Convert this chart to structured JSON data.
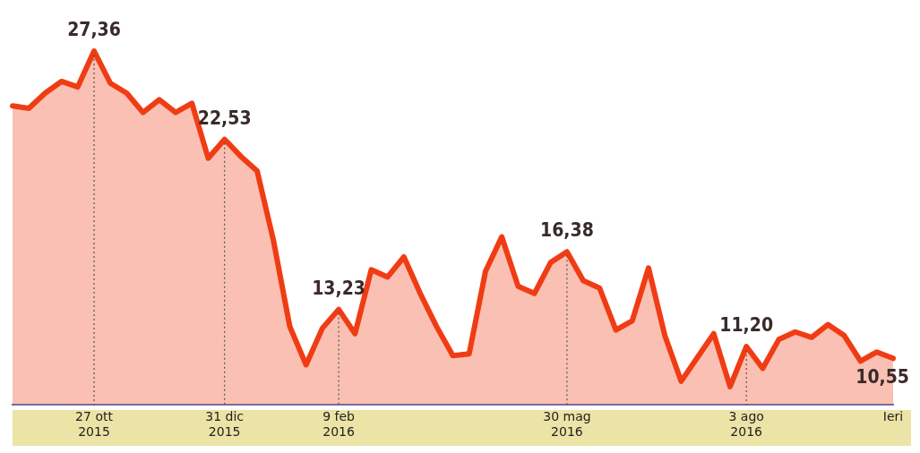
{
  "chart_data": {
    "type": "area",
    "categories": [
      null,
      null,
      null,
      null,
      null,
      "27 ott\n2015",
      null,
      null,
      null,
      null,
      null,
      null,
      null,
      "31 dic\n2015",
      null,
      null,
      null,
      null,
      null,
      null,
      "9 feb\n2016",
      null,
      null,
      null,
      null,
      null,
      null,
      null,
      null,
      null,
      null,
      null,
      null,
      null,
      "30 mag\n2016",
      null,
      null,
      null,
      null,
      null,
      null,
      null,
      null,
      null,
      null,
      "3 ago\n2016",
      null,
      null,
      null,
      null,
      null,
      null,
      null,
      null,
      "Ieri"
    ],
    "series": [
      {
        "color": "#f03c14",
        "values": [
          24.36,
          24.23,
          25.06,
          25.7,
          25.4,
          27.36,
          25.6,
          25.06,
          24.0,
          24.7,
          24.0,
          24.5,
          21.5,
          22.53,
          21.6,
          20.8,
          17.0,
          12.3,
          10.2,
          12.2,
          13.23,
          11.9,
          15.4,
          15.0,
          16.1,
          14.1,
          12.3,
          10.7,
          10.8,
          15.3,
          17.2,
          14.5,
          14.1,
          15.8,
          16.38,
          14.8,
          14.4,
          12.1,
          12.6,
          15.5,
          11.8,
          9.3,
          10.6,
          11.9,
          9.0,
          11.2,
          10.0,
          11.6,
          12.0,
          11.7,
          12.4,
          11.8,
          10.4,
          10.9,
          10.55
        ],
        "value_labels": [
          null,
          null,
          null,
          null,
          null,
          "27,36",
          null,
          null,
          null,
          null,
          null,
          null,
          null,
          "22,53",
          null,
          null,
          null,
          null,
          null,
          null,
          "13,23",
          null,
          null,
          null,
          null,
          null,
          null,
          null,
          null,
          null,
          null,
          null,
          null,
          null,
          "16,38",
          null,
          null,
          null,
          null,
          null,
          null,
          null,
          null,
          null,
          null,
          "11,20",
          null,
          null,
          null,
          null,
          null,
          null,
          null,
          null,
          "10,55"
        ]
      }
    ],
    "tick_labels": "x",
    "grid": false,
    "legend": false,
    "ref_lines": [
      {
        "axis": "x",
        "value": "27 ott\n2015",
        "line_style": "dotted",
        "color": "#555555"
      },
      {
        "axis": "x",
        "value": "31 dic\n2015",
        "line_style": "dotted",
        "color": "#555555"
      },
      {
        "axis": "x",
        "value": "9 feb\n2016",
        "line_style": "dotted",
        "color": "#555555"
      },
      {
        "axis": "x",
        "value": "30 mag\n2016",
        "line_style": "dotted",
        "color": "#555555"
      },
      {
        "axis": "x",
        "value": "3 ago\n2016",
        "line_style": "dotted",
        "color": "#555555"
      }
    ]
  }
}
